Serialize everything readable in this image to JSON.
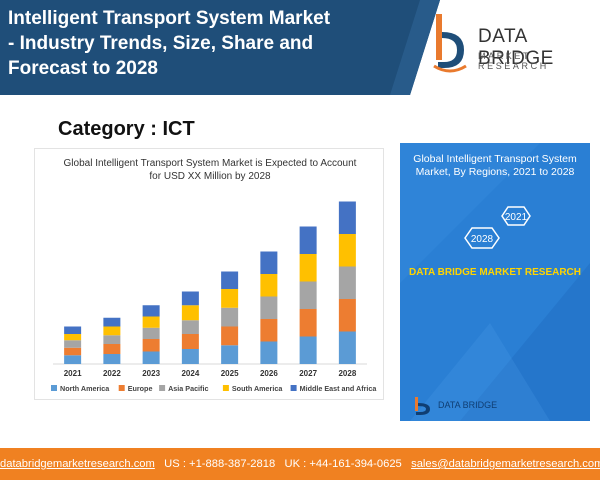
{
  "header": {
    "title": "Intelligent Transport System Market\n- Industry Trends, Size, Share and\nForecast to 2028",
    "brand_name": "DATA BRIDGE",
    "brand_sub": "MARKET RESEARCH",
    "background_color": "#1f4e79",
    "logo_icon": "data-bridge-logo-icon"
  },
  "category": "Category : ICT",
  "chart_data": {
    "type": "bar",
    "stacked": true,
    "title": "Global Intelligent Transport System Market is Expected to Account for USD XX Million by 2028",
    "categories": [
      "2021",
      "2022",
      "2023",
      "2024",
      "2025",
      "2026",
      "2027",
      "2028"
    ],
    "series": [
      {
        "name": "North America",
        "color": "#5b9bd5",
        "values": [
          7,
          8,
          10,
          12,
          15,
          18,
          22,
          26
        ]
      },
      {
        "name": "Europe",
        "color": "#ed7d31",
        "values": [
          6,
          8,
          10,
          12,
          15,
          18,
          22,
          26
        ]
      },
      {
        "name": "Asia Pacific",
        "color": "#a5a5a5",
        "values": [
          6,
          7,
          9,
          11,
          15,
          18,
          22,
          26
        ]
      },
      {
        "name": "South America",
        "color": "#ffc000",
        "values": [
          5,
          7,
          9,
          12,
          15,
          18,
          22,
          26
        ]
      },
      {
        "name": "Middle East and Africa",
        "color": "#4472c4",
        "values": [
          6,
          7,
          9,
          11,
          14,
          18,
          22,
          26
        ]
      }
    ],
    "ylim": [
      0,
      140
    ],
    "grid": false,
    "legend_position": "bottom",
    "yaxis_visible": false
  },
  "panel": {
    "title": "Global Intelligent Transport System Market,  By Regions, 2021 to 2028",
    "hex_labels": [
      "2021",
      "2028"
    ],
    "brand_text": "DATA BRIDGE MARKET RESEARCH",
    "logo_text": "DATA BRIDGE",
    "background_color": "#2a7fd4",
    "accent_color": "#ffd400"
  },
  "footer": {
    "website": "databridgemarketresearch.com",
    "us_phone": "US : +1-888-387-2818",
    "uk_phone": "UK : +44-161-394-0625",
    "email": "sales@databridgemarketresearch.com",
    "background_color": "#f08121"
  }
}
